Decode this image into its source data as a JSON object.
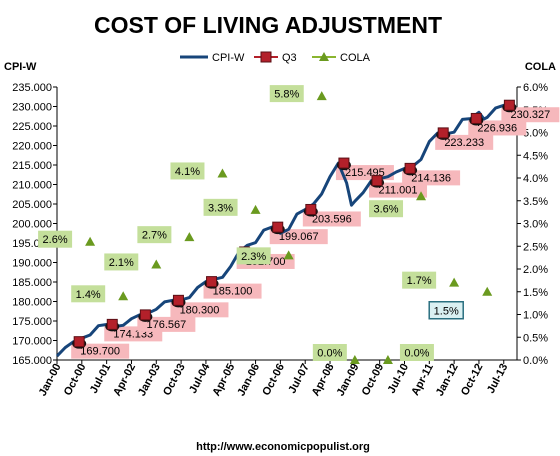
{
  "chart_data": {
    "type": "line",
    "title": "COST OF LIVING ADJUSTMENT",
    "y_left_label": "CPI-W",
    "y_right_label": "COLA",
    "source": "http://www.economicpopulist.org",
    "y_left_range": [
      165000,
      235000
    ],
    "y_left_ticks": [
      "165.000",
      "170.000",
      "175.000",
      "180.000",
      "185.000",
      "190.000",
      "195.000",
      "200.000",
      "205.000",
      "210.000",
      "215.000",
      "220.000",
      "225.000",
      "230.000",
      "235.000"
    ],
    "y_right_range": [
      0.0,
      6.0
    ],
    "y_right_ticks": [
      "0.0%",
      "0.5%",
      "1.0%",
      "1.5%",
      "2.0%",
      "2.5%",
      "3.0%",
      "3.5%",
      "4.0%",
      "4.5%",
      "5.0%",
      "5.5%",
      "6.0%"
    ],
    "x_ticks": [
      "Jan-00",
      "Oct-00",
      "Jul-01",
      "Apr-02",
      "Jan-03",
      "Oct-03",
      "Jul-04",
      "Apr-05",
      "Jan-06",
      "Oct-06",
      "Jul-07",
      "Apr-08",
      "Jan-09",
      "Oct-09",
      "Jul-10",
      "Apr-11",
      "Jan-12",
      "Oct-12",
      "Jul-13"
    ],
    "x_range_years": [
      2000.0,
      2013.9
    ],
    "grid": false,
    "legend_position": "top",
    "legend": [
      "CPI-W",
      "Q3",
      "COLA"
    ],
    "series": [
      {
        "name": "CPI-W",
        "color": "#17457a",
        "points": [
          [
            2000.0,
            166.0
          ],
          [
            2000.25,
            168.2
          ],
          [
            2000.5,
            169.7
          ],
          [
            2000.75,
            170.6
          ],
          [
            2001.0,
            171.4
          ],
          [
            2001.25,
            173.8
          ],
          [
            2001.5,
            174.1
          ],
          [
            2001.75,
            173.6
          ],
          [
            2002.0,
            173.9
          ],
          [
            2002.25,
            175.6
          ],
          [
            2002.5,
            176.6
          ],
          [
            2002.75,
            177.0
          ],
          [
            2003.0,
            178.0
          ],
          [
            2003.25,
            179.9
          ],
          [
            2003.5,
            180.3
          ],
          [
            2003.75,
            180.4
          ],
          [
            2004.0,
            181.0
          ],
          [
            2004.25,
            183.6
          ],
          [
            2004.5,
            185.1
          ],
          [
            2004.75,
            185.7
          ],
          [
            2005.0,
            186.2
          ],
          [
            2005.25,
            189.0
          ],
          [
            2005.5,
            192.7
          ],
          [
            2005.75,
            194.4
          ],
          [
            2006.0,
            195.1
          ],
          [
            2006.25,
            198.3
          ],
          [
            2006.5,
            199.1
          ],
          [
            2006.75,
            197.5
          ],
          [
            2007.0,
            198.5
          ],
          [
            2007.25,
            202.4
          ],
          [
            2007.5,
            203.6
          ],
          [
            2007.75,
            205.0
          ],
          [
            2008.0,
            207.6
          ],
          [
            2008.25,
            212.0
          ],
          [
            2008.5,
            215.5
          ],
          [
            2008.75,
            210.4
          ],
          [
            2008.9,
            204.7
          ],
          [
            2009.0,
            205.7
          ],
          [
            2009.25,
            207.9
          ],
          [
            2009.5,
            211.0
          ],
          [
            2009.75,
            211.5
          ],
          [
            2010.0,
            212.0
          ],
          [
            2010.25,
            213.2
          ],
          [
            2010.5,
            214.1
          ],
          [
            2010.75,
            214.7
          ],
          [
            2011.0,
            216.4
          ],
          [
            2011.25,
            221.0
          ],
          [
            2011.5,
            223.2
          ],
          [
            2011.75,
            223.0
          ],
          [
            2012.0,
            223.4
          ],
          [
            2012.25,
            226.7
          ],
          [
            2012.5,
            226.9
          ],
          [
            2012.75,
            228.5
          ],
          [
            2012.9,
            226.8
          ],
          [
            2013.0,
            227.2
          ],
          [
            2013.25,
            229.6
          ],
          [
            2013.5,
            230.3
          ],
          [
            2013.75,
            229.8
          ]
        ]
      },
      {
        "name": "Q3",
        "color": "#b3202a",
        "points": [
          [
            2000.67,
            169.7
          ],
          [
            2001.67,
            174.133
          ],
          [
            2002.67,
            176.567
          ],
          [
            2003.67,
            180.3
          ],
          [
            2004.67,
            185.1
          ],
          [
            2005.67,
            192.7
          ],
          [
            2006.67,
            199.067
          ],
          [
            2007.67,
            203.596
          ],
          [
            2008.67,
            215.495
          ],
          [
            2009.67,
            211.001
          ],
          [
            2010.67,
            214.136
          ],
          [
            2011.67,
            223.233
          ],
          [
            2012.67,
            226.936
          ],
          [
            2013.67,
            230.327
          ]
        ],
        "labels": [
          "169.700",
          "174.133",
          "176.567",
          "180.300",
          "185.100",
          "192.700",
          "199.067",
          "203.596",
          "215.495",
          "211.001",
          "214.136",
          "223.233",
          "226.936",
          "230.327"
        ]
      },
      {
        "name": "COLA",
        "color": "#6a9a1f",
        "points": [
          [
            2001.0,
            2.6
          ],
          [
            2002.0,
            1.4
          ],
          [
            2003.0,
            2.1
          ],
          [
            2004.0,
            2.7
          ],
          [
            2005.0,
            4.1
          ],
          [
            2006.0,
            3.3
          ],
          [
            2007.0,
            2.3
          ],
          [
            2008.0,
            5.8
          ],
          [
            2009.0,
            0.0
          ],
          [
            2010.0,
            0.0
          ],
          [
            2011.0,
            3.6
          ],
          [
            2012.0,
            1.7
          ],
          [
            2013.0,
            1.5
          ]
        ],
        "labels": [
          "2.6%",
          "1.4%",
          "2.1%",
          "2.7%",
          "4.1%",
          "3.3%",
          "2.3%",
          "5.8%",
          "0.0%",
          "0.0%",
          "3.6%",
          "1.7%",
          "1.5%"
        ]
      }
    ]
  }
}
